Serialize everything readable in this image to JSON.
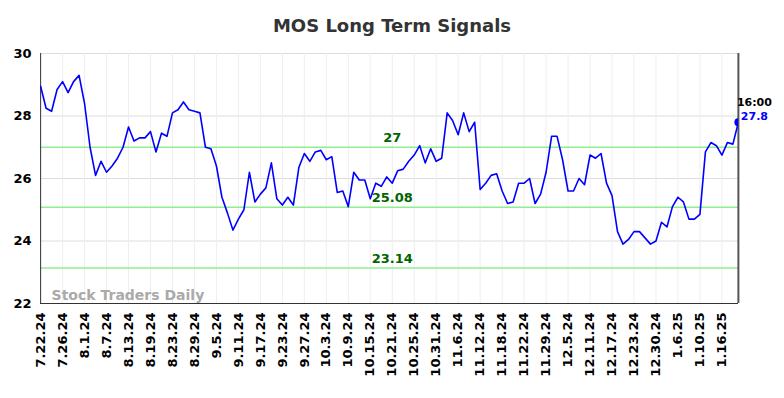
{
  "chart_data": {
    "type": "line",
    "title": "MOS Long Term Signals",
    "categories": [
      "7.22.24",
      null,
      null,
      null,
      "7.26.24",
      null,
      null,
      null,
      "8.1.24",
      null,
      null,
      null,
      "8.7.24",
      null,
      null,
      null,
      "8.13.24",
      null,
      null,
      null,
      "8.19.24",
      null,
      null,
      null,
      "8.23.24",
      null,
      null,
      null,
      "8.29.24",
      null,
      null,
      null,
      "9.5.24",
      null,
      null,
      null,
      "9.11.24",
      null,
      null,
      null,
      "9.17.24",
      null,
      null,
      null,
      "9.23.24",
      null,
      null,
      null,
      "9.27.24",
      null,
      null,
      null,
      "10.3.24",
      null,
      null,
      null,
      "10.9.24",
      null,
      null,
      null,
      "10.15.24",
      null,
      null,
      null,
      "10.21.24",
      null,
      null,
      null,
      "10.25.24",
      null,
      null,
      null,
      "10.31.24",
      null,
      null,
      null,
      "11.6.24",
      null,
      null,
      null,
      "11.12.24",
      null,
      null,
      null,
      "11.18.24",
      null,
      null,
      null,
      "11.22.24",
      null,
      null,
      null,
      "11.29.24",
      null,
      null,
      null,
      "12.5.24",
      null,
      null,
      null,
      "12.11.24",
      null,
      null,
      null,
      "12.17.24",
      null,
      null,
      null,
      "12.23.24",
      null,
      null,
      null,
      "12.30.24",
      null,
      null,
      null,
      "1.6.25",
      null,
      null,
      null,
      "1.10.25",
      null,
      null,
      null,
      "1.16.25",
      null,
      null,
      null
    ],
    "values": [
      28.95,
      28.25,
      28.15,
      28.85,
      29.1,
      28.75,
      29.1,
      29.3,
      28.4,
      27.0,
      26.1,
      26.55,
      26.2,
      26.4,
      26.65,
      27.0,
      27.65,
      27.2,
      27.3,
      27.3,
      27.5,
      26.85,
      27.45,
      27.35,
      28.1,
      28.2,
      28.45,
      28.2,
      28.15,
      28.1,
      27.0,
      26.95,
      26.4,
      25.4,
      24.9,
      24.35,
      24.7,
      25.0,
      26.2,
      25.25,
      25.5,
      25.7,
      26.5,
      25.35,
      25.15,
      25.4,
      25.15,
      26.35,
      26.8,
      26.55,
      26.85,
      26.9,
      26.6,
      26.7,
      25.55,
      25.6,
      25.1,
      26.2,
      25.95,
      25.95,
      25.35,
      25.85,
      25.75,
      26.05,
      25.85,
      26.25,
      26.3,
      26.55,
      26.75,
      27.05,
      26.5,
      26.95,
      26.55,
      26.65,
      28.1,
      27.85,
      27.4,
      28.1,
      27.5,
      27.8,
      25.65,
      25.85,
      26.1,
      26.15,
      25.6,
      25.2,
      25.25,
      25.85,
      25.85,
      26.0,
      25.2,
      25.5,
      26.2,
      27.35,
      27.35,
      26.6,
      25.6,
      25.6,
      26.0,
      25.8,
      26.75,
      26.65,
      26.8,
      25.85,
      25.45,
      24.3,
      23.9,
      24.05,
      24.3,
      24.3,
      24.1,
      23.9,
      24.0,
      24.6,
      24.45,
      25.1,
      25.4,
      25.25,
      24.7,
      24.7,
      24.85,
      26.85,
      27.15,
      27.05,
      26.75,
      27.15,
      27.1,
      27.8
    ],
    "color": "#0000ff",
    "ylim": [
      22,
      30
    ],
    "yticks": [
      22,
      24,
      26,
      28,
      30
    ],
    "grid": true,
    "signals": [
      27,
      25.08,
      23.14
    ],
    "signal_color": "#90ee90",
    "signal_label_color": "#006400",
    "end_label": "16:00",
    "watermark": "Stock Traders Daily"
  }
}
